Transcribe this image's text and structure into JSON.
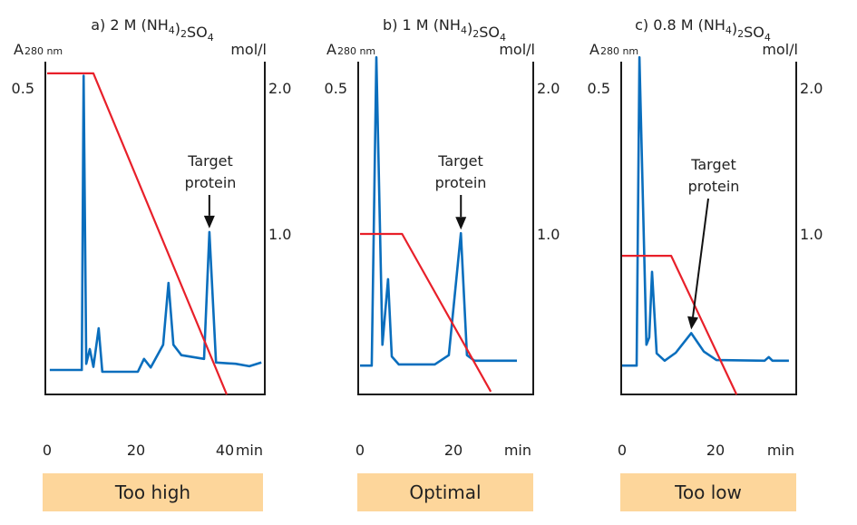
{
  "colors": {
    "absorbance": "#0a6ebd",
    "salt_gradient": "#e8202a",
    "verdict_box": "#fdd69b",
    "axes": "#1a1a1a"
  },
  "chart_data": [
    {
      "type": "line",
      "title": {
        "prefix": "a) 2 M (NH",
        "sub1": "4",
        "mid": ")",
        "sub2": "2",
        "so": "SO",
        "sub3": "4"
      },
      "ylabel_left": {
        "main": "A",
        "sub": "280 nm"
      },
      "ylabel_right": "mol/l",
      "xlabel": "min",
      "x_ticks": [
        "0",
        "20",
        "40"
      ],
      "x_tick_values": [
        0,
        20,
        40
      ],
      "y_left_ticks": [
        {
          "value": 0.5,
          "label": "0.5"
        }
      ],
      "y_right_ticks": [
        {
          "value": 2.0,
          "label": "2.0"
        },
        {
          "value": 1.0,
          "label": "1.0"
        }
      ],
      "annotation": {
        "line1": "Target",
        "line2": "protein",
        "points_to_min": 36.5
      },
      "verdict": "Too high",
      "series": [
        {
          "kind": "absorbance",
          "x": [
            0.6,
            7.8,
            8.2,
            8.8,
            9.6,
            10.4,
            11.6,
            12.4,
            20.4,
            21.8,
            23.3,
            26.1,
            27.3,
            28.4,
            30.2,
            35.3,
            36.5,
            38.0,
            42.4,
            45.5,
            48.2
          ],
          "y": [
            0.04,
            0.04,
            0.52,
            0.05,
            0.074,
            0.045,
            0.108,
            0.037,
            0.037,
            0.058,
            0.044,
            0.081,
            0.182,
            0.081,
            0.064,
            0.058,
            0.265,
            0.052,
            0.05,
            0.046,
            0.052
          ]
        },
        {
          "kind": "salt",
          "x": [
            0,
            10.4,
            40.4
          ],
          "y": [
            2.1,
            2.1,
            -0.1
          ]
        }
      ]
    },
    {
      "type": "line",
      "title": {
        "prefix": "b) 1 M (NH",
        "sub1": "4",
        "mid": ")",
        "sub2": "2",
        "so": "SO",
        "sub3": "4"
      },
      "ylabel_left": {
        "main": "A",
        "sub": "280 nm"
      },
      "ylabel_right": "mol/l",
      "xlabel": "min",
      "x_ticks": [
        "0",
        "20"
      ],
      "x_tick_values": [
        0,
        20
      ],
      "y_left_ticks": [
        {
          "value": 0.5,
          "label": "0.5"
        }
      ],
      "y_right_ticks": [
        {
          "value": 2.0,
          "label": "2.0"
        },
        {
          "value": 1.0,
          "label": "1.0"
        }
      ],
      "annotation": {
        "line1": "Target",
        "line2": "protein",
        "points_to_min": 21.6
      },
      "verdict": "Optimal",
      "series": [
        {
          "kind": "absorbance",
          "x": [
            0,
            2.5,
            3.5,
            4.8,
            6.0,
            6.8,
            8.3,
            16,
            19,
            21.6,
            22.9,
            24.5,
            33.6
          ],
          "y": [
            0.047,
            0.047,
            0.55,
            0.081,
            0.188,
            0.062,
            0.049,
            0.049,
            0.064,
            0.263,
            0.064,
            0.055,
            0.055
          ]
        },
        {
          "kind": "salt",
          "x": [
            0,
            9,
            28
          ],
          "y": [
            1.0,
            1.0,
            -0.08
          ]
        }
      ]
    },
    {
      "type": "line",
      "title": {
        "prefix": "c) 0.8 M (NH",
        "sub1": "4",
        "mid": ")",
        "sub2": "2",
        "so": "SO",
        "sub3": "4"
      },
      "ylabel_left": {
        "main": "A",
        "sub": "280 nm"
      },
      "ylabel_right": "mol/l",
      "xlabel": "min",
      "x_ticks": [
        "0",
        "20"
      ],
      "x_tick_values": [
        0,
        20
      ],
      "y_left_ticks": [
        {
          "value": 0.5,
          "label": "0.5"
        }
      ],
      "y_right_ticks": [
        {
          "value": 2.0,
          "label": "2.0"
        },
        {
          "value": 1.0,
          "label": "1.0"
        }
      ],
      "annotation": {
        "line1": "Target",
        "line2": "protein",
        "points_to_min": 14.8
      },
      "verdict": "Too low",
      "series": [
        {
          "kind": "absorbance",
          "x": [
            0,
            3.1,
            3.7,
            5.2,
            5.8,
            6.4,
            7.4,
            9.1,
            11.5,
            14.8,
            17.5,
            20.2,
            30.5,
            31.4,
            32.2,
            35.7
          ],
          "y": [
            0.047,
            0.047,
            0.55,
            0.081,
            0.093,
            0.2,
            0.067,
            0.055,
            0.068,
            0.1,
            0.07,
            0.056,
            0.055,
            0.061,
            0.055,
            0.055
          ]
        },
        {
          "kind": "salt",
          "x": [
            0,
            10.5,
            24.5
          ],
          "y": [
            0.85,
            0.85,
            -0.1
          ]
        }
      ]
    }
  ]
}
